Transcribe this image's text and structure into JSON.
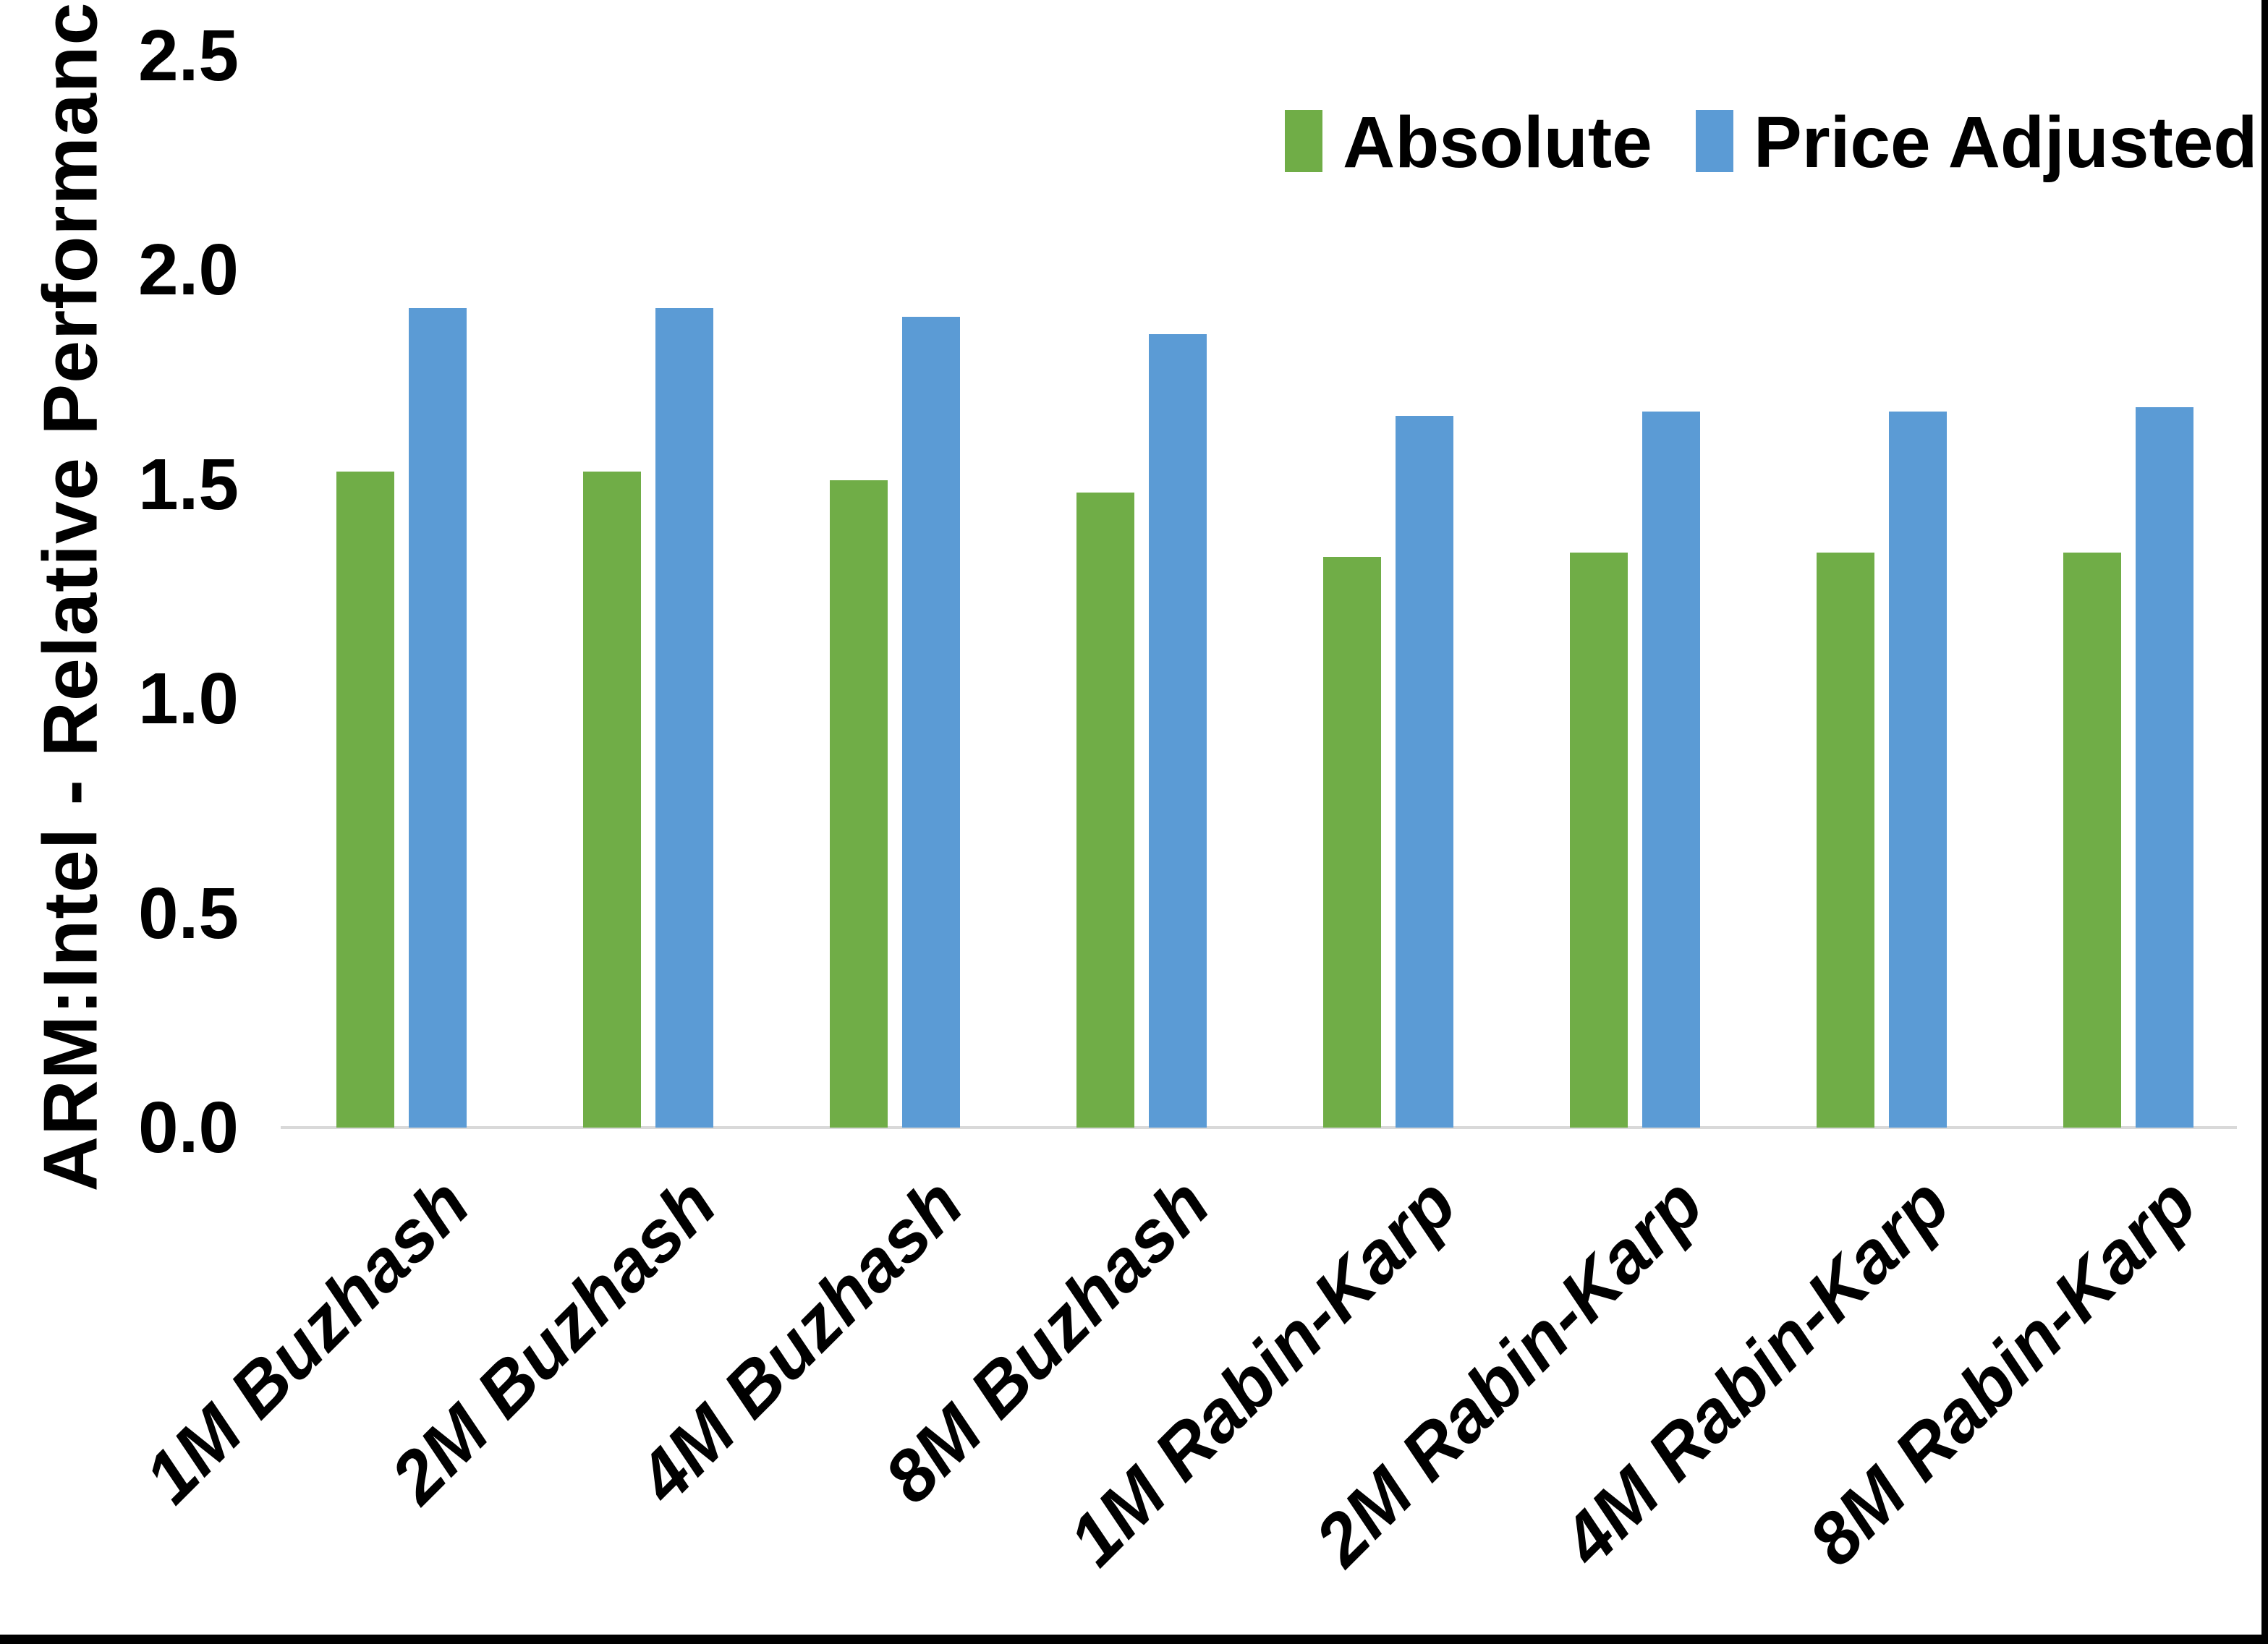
{
  "chart_data": {
    "type": "bar",
    "title": "",
    "xlabel": "",
    "ylabel": "ARM:Intel - Relative Performance",
    "categories": [
      "1M Buzhash",
      "2M Buzhash",
      "4M Buzhash",
      "8M Buzhash",
      "1M Rabin-Karp",
      "2M Rabin-Karp",
      "4M Rabin-Karp",
      "8M Rabin-Karp"
    ],
    "series": [
      {
        "name": "Absolute",
        "color": "#70AD47",
        "values": [
          1.53,
          1.53,
          1.51,
          1.48,
          1.33,
          1.34,
          1.34,
          1.34
        ]
      },
      {
        "name": "Price Adjusted",
        "color": "#5B9BD5",
        "values": [
          1.91,
          1.91,
          1.89,
          1.85,
          1.66,
          1.67,
          1.67,
          1.68
        ]
      }
    ],
    "yticks": [
      "0.0",
      "0.5",
      "1.0",
      "1.5",
      "2.0",
      "2.5"
    ],
    "ylim": [
      0.0,
      2.5
    ],
    "grid": false,
    "legend_position": "top-right",
    "axis_line_color": "#D9D9D9",
    "background_color": "#FFFFFF",
    "frame_color": "#000000"
  }
}
